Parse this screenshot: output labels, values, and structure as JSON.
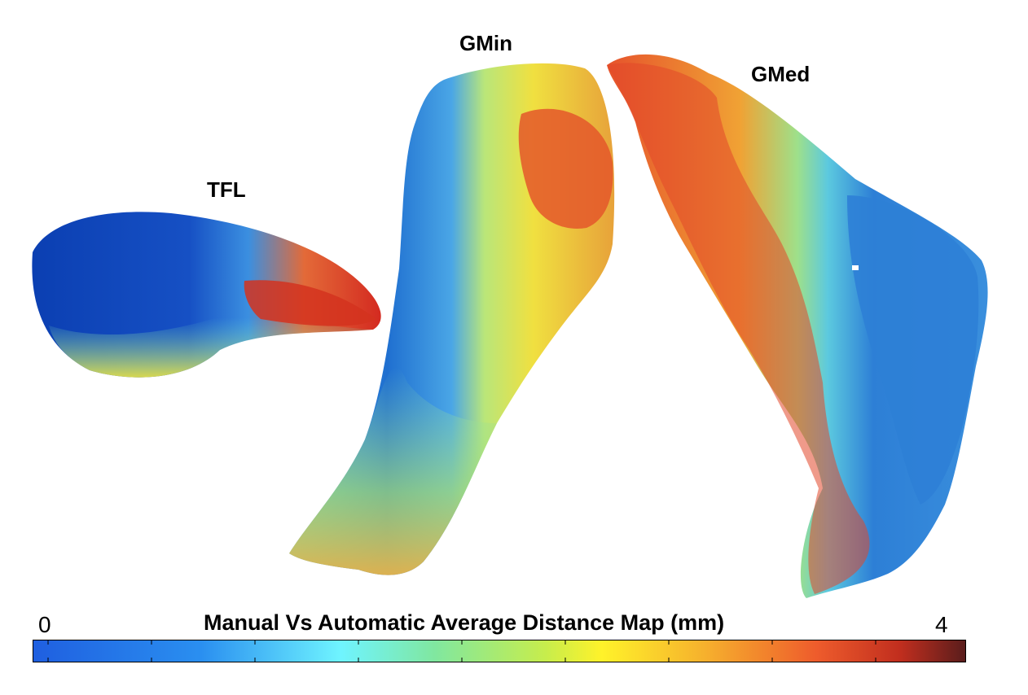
{
  "labels": {
    "tfl": "TFL",
    "gmin": "GMin",
    "gmed": "GMed"
  },
  "colorbar": {
    "title": "Manual Vs Automatic Average Distance Map (mm)",
    "min": "0",
    "max": "4",
    "colors": [
      "#1f5fe0",
      "#2a8ff0",
      "#6ff4ff",
      "#80e7a0",
      "#c7ed4c",
      "#fff22a",
      "#f6b12d",
      "#ee5c2c",
      "#c12e1e",
      "#5a1d1c"
    ]
  },
  "shapes": [
    {
      "name": "tfl-muscle-surface",
      "dominant_colors": [
        "#0b3fb2",
        "#2a79d6",
        "#e2e04a",
        "#e23c22"
      ]
    },
    {
      "name": "gmin-muscle-surface",
      "dominant_colors": [
        "#2b85d6",
        "#8fdcc0",
        "#e8e53a",
        "#e4572a"
      ]
    },
    {
      "name": "gmed-muscle-surface",
      "dominant_colors": [
        "#e2472a",
        "#f0c33a",
        "#59c4d9",
        "#2d7fd6"
      ]
    }
  ]
}
